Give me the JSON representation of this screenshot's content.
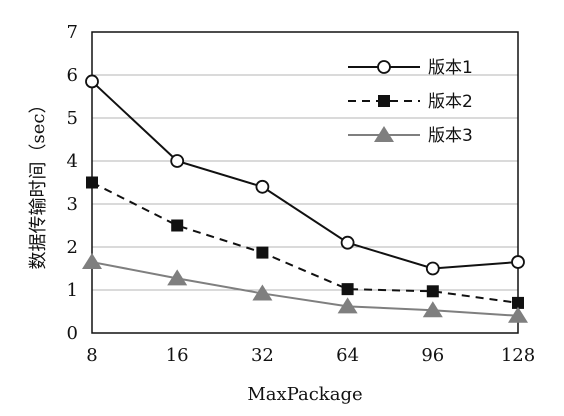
{
  "chart_data": {
    "type": "line",
    "title": "",
    "xlabel": "MaxPackage",
    "ylabel": "数据传输时间（sec）",
    "categories": [
      "8",
      "16",
      "32",
      "64",
      "96",
      "128"
    ],
    "ylim": [
      0,
      7
    ],
    "yticks": [
      "0",
      "1",
      "2",
      "3",
      "4",
      "5",
      "6",
      "7"
    ],
    "grid": "horizontal",
    "legend_position": "top-right",
    "series": [
      {
        "name": "版本1",
        "values": [
          5.85,
          4.0,
          3.4,
          2.1,
          1.5,
          1.65
        ],
        "color": "#111111",
        "dash": "solid",
        "marker": "circle-open"
      },
      {
        "name": "版本2",
        "values": [
          3.5,
          2.5,
          1.87,
          1.02,
          0.97,
          0.7
        ],
        "color": "#111111",
        "dash": "dashed",
        "marker": "square"
      },
      {
        "name": "版本3",
        "values": [
          1.65,
          1.27,
          0.92,
          0.62,
          0.53,
          0.4
        ],
        "color": "#7f7f7f",
        "dash": "solid",
        "marker": "triangle"
      }
    ]
  }
}
